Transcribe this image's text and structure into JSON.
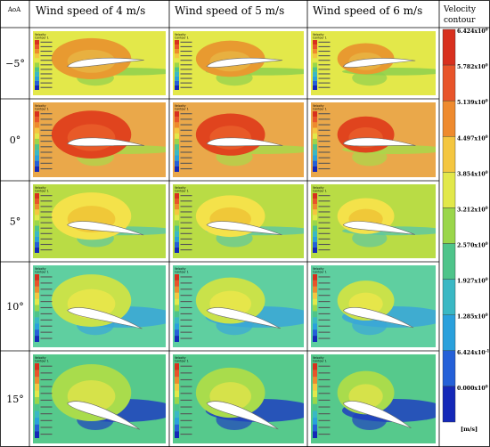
{
  "table": {
    "corner_label": "AoA",
    "column_headers": [
      "Wind speed of 4 m/s",
      "Wind speed of 5 m/s",
      "Wind speed of 6 m/s"
    ],
    "legend_header_line1": "Velocity",
    "legend_header_line2": "contour",
    "rows": [
      {
        "aoa": "−5°",
        "bg": "#e3e84a",
        "blob": "#e89a30",
        "blobCore": "#e8b040",
        "wake": "#8ed04e"
      },
      {
        "aoa": "0°",
        "bg": "#eaa84a",
        "blob": "#e0441e",
        "blobCore": "#e85a28",
        "wake": "#a9d84a"
      },
      {
        "aoa": "5°",
        "bg": "#b9dc45",
        "blob": "#f4e24a",
        "blobCore": "#f0c838",
        "wake": "#5fc8a0"
      },
      {
        "aoa": "10°",
        "bg": "#5fcfa0",
        "blob": "#c9e24a",
        "blobCore": "#e6e64a",
        "wake": "#3aa6d8"
      },
      {
        "aoa": "15°",
        "bg": "#56c98c",
        "blob": "#a9dc4c",
        "blobCore": "#d6e24a",
        "wake": "#1f3fbf"
      }
    ]
  },
  "legend": {
    "levels": [
      {
        "label": "6.424x10",
        "exp": "0",
        "color": "#d8301e"
      },
      {
        "label": "5.782x10",
        "exp": "0",
        "color": "#e8542a"
      },
      {
        "label": "5.139x10",
        "exp": "0",
        "color": "#ee8a2e"
      },
      {
        "label": "4.497x10",
        "exp": "0",
        "color": "#f4c640"
      },
      {
        "label": "3.854x10",
        "exp": "0",
        "color": "#e2e84a"
      },
      {
        "label": "3.212x10",
        "exp": "0",
        "color": "#9ad64a"
      },
      {
        "label": "2.570x10",
        "exp": "0",
        "color": "#4ec48a"
      },
      {
        "label": "1.927x10",
        "exp": "0",
        "color": "#3ab8c4"
      },
      {
        "label": "1.285x10",
        "exp": "0",
        "color": "#2aa0dc"
      },
      {
        "label": "6.424x10",
        "exp": "-1",
        "color": "#2460d8"
      },
      {
        "label": "0.000x10",
        "exp": "0",
        "color": "#1428b8"
      }
    ],
    "unit": "[m/s]"
  },
  "panel_legend": {
    "title_line1": "Velocity",
    "title_line2": "Contour 1"
  }
}
